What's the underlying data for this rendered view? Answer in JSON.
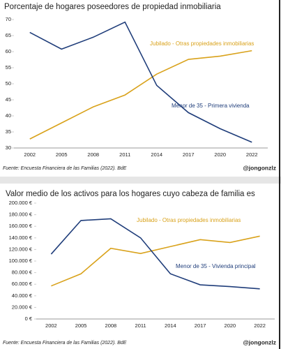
{
  "chart_data": [
    {
      "type": "line",
      "title": "Porcentaje de hogares poseedores de propiedad inmobiliaria",
      "categories": [
        "2002",
        "2005",
        "2008",
        "2011",
        "2014",
        "2017",
        "2020",
        "2022"
      ],
      "series": [
        {
          "name": "Jubilado - Otras propiedades inmobiliarias",
          "color": "#d9a21b",
          "values": [
            32.8,
            37.8,
            42.8,
            46.5,
            53,
            57.6,
            58.6,
            60.3
          ]
        },
        {
          "name": "Menor de 35 - Primera vivienda",
          "color": "#1f3d7a",
          "values": [
            66,
            60.8,
            64.5,
            69.2,
            49.5,
            41,
            36,
            31.8
          ]
        }
      ],
      "ylim": [
        30,
        70
      ],
      "yticks": [
        30,
        35,
        40,
        45,
        50,
        55,
        60,
        65,
        70
      ],
      "source": "Fuente: Encuesta Financiera de las Familias (2022). BdE",
      "handle": "@jongonzlz"
    },
    {
      "type": "line",
      "title": "Valor medio de los activos para los hogares cuyo cabeza de familia es",
      "categories": [
        "2002",
        "2005",
        "2008",
        "2011",
        "2014",
        "2017",
        "2020",
        "2022"
      ],
      "series": [
        {
          "name": "Jubilado - Otras propiedades inmobiliarias",
          "color": "#d9a21b",
          "values": [
            57000,
            78000,
            122000,
            113000,
            125000,
            137000,
            132000,
            143000
          ]
        },
        {
          "name": "Menor de 35 - Vivienda principal",
          "color": "#1f3d7a",
          "values": [
            112000,
            170000,
            173000,
            140000,
            78000,
            59000,
            56000,
            52000
          ]
        }
      ],
      "ylim": [
        0,
        200000
      ],
      "yticks": [
        {
          "value": 0,
          "label": "0 €"
        },
        {
          "value": 20000,
          "label": "20.000 €"
        },
        {
          "value": 40000,
          "label": "40.000 €"
        },
        {
          "value": 60000,
          "label": "60.000 €"
        },
        {
          "value": 80000,
          "label": "80.000 €"
        },
        {
          "value": 100000,
          "label": "100.000 €"
        },
        {
          "value": 120000,
          "label": "120.000 €"
        },
        {
          "value": 140000,
          "label": "140.000 €"
        },
        {
          "value": 160000,
          "label": "160.000 €"
        },
        {
          "value": 180000,
          "label": "180.000 €"
        },
        {
          "value": 200000,
          "label": "200.000 €"
        }
      ],
      "source": "Fuente: Encuesta Financiera de las Familias (2022). BdE",
      "handle": "@jongonzlz"
    }
  ]
}
